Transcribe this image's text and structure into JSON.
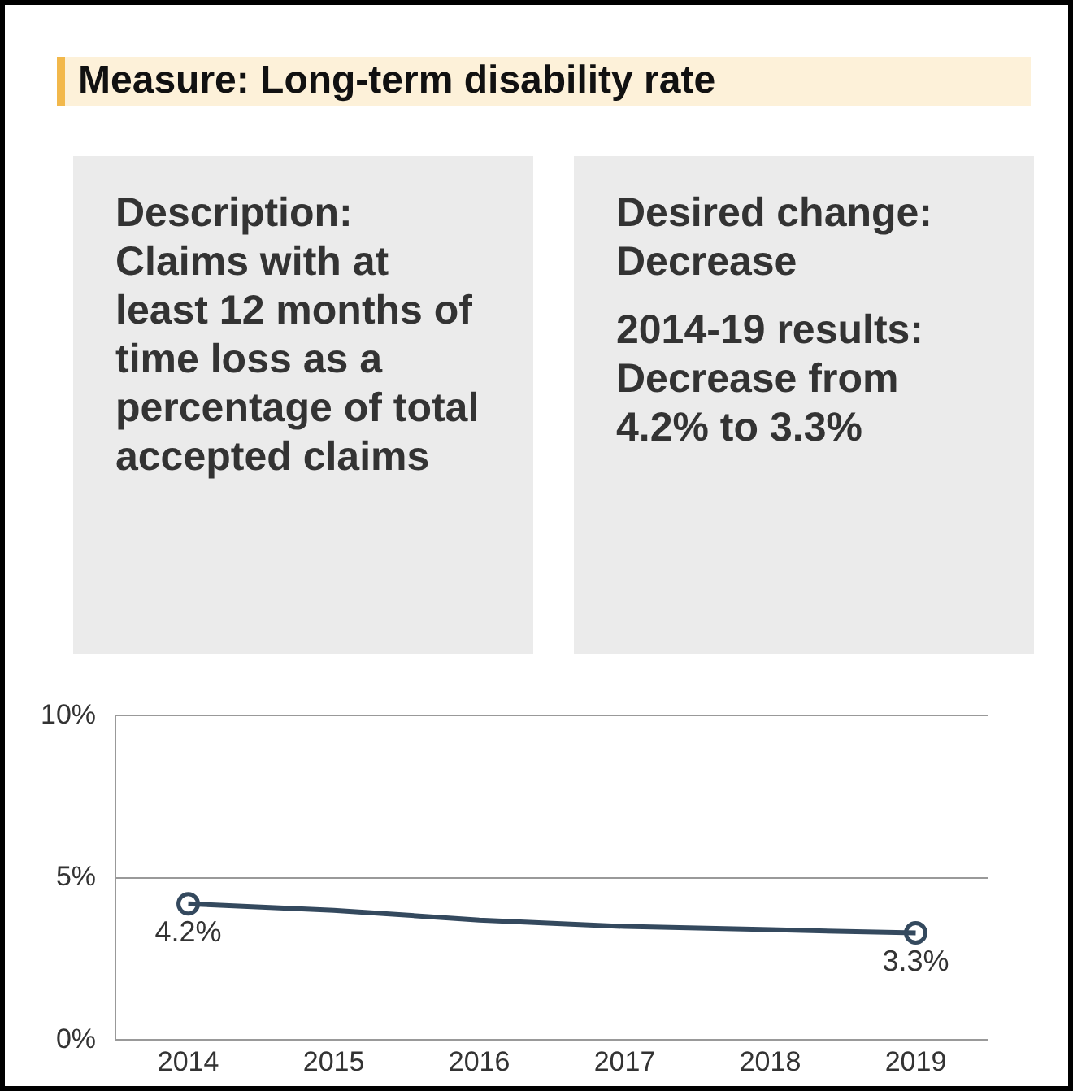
{
  "chart_data": [
    {
      "type": "other",
      "title": "Measure: Long-term disability rate",
      "annotations": [
        "Description: Claims with at least 12 months of time loss as a percentage of total accepted claims",
        "Desired change: Decrease",
        "2014-19 results: Decrease from 4.2% to 3.3%"
      ]
    },
    {
      "type": "line",
      "categories": [
        "2014",
        "2015",
        "2016",
        "2017",
        "2018",
        "2019"
      ],
      "series": [
        {
          "type": "line",
          "color": "#34495e",
          "values": [
            4.2,
            4.0,
            3.7,
            3.5,
            3.4,
            3.3
          ],
          "marker": "none"
        },
        {
          "type": "scatter",
          "color": "#34495e",
          "values": [
            4.2,
            null,
            null,
            null,
            null,
            3.3
          ],
          "marker": "circle",
          "value_labels": [
            "4.2%",
            null,
            null,
            null,
            null,
            "3.3%"
          ]
        }
      ],
      "ylim": [
        0,
        10
      ],
      "yticks": [
        {
          "value": 0,
          "label": "0%"
        },
        {
          "value": 5,
          "label": "5%"
        },
        {
          "value": 10,
          "label": "10%"
        }
      ],
      "grid": "y",
      "legend": false
    }
  ]
}
